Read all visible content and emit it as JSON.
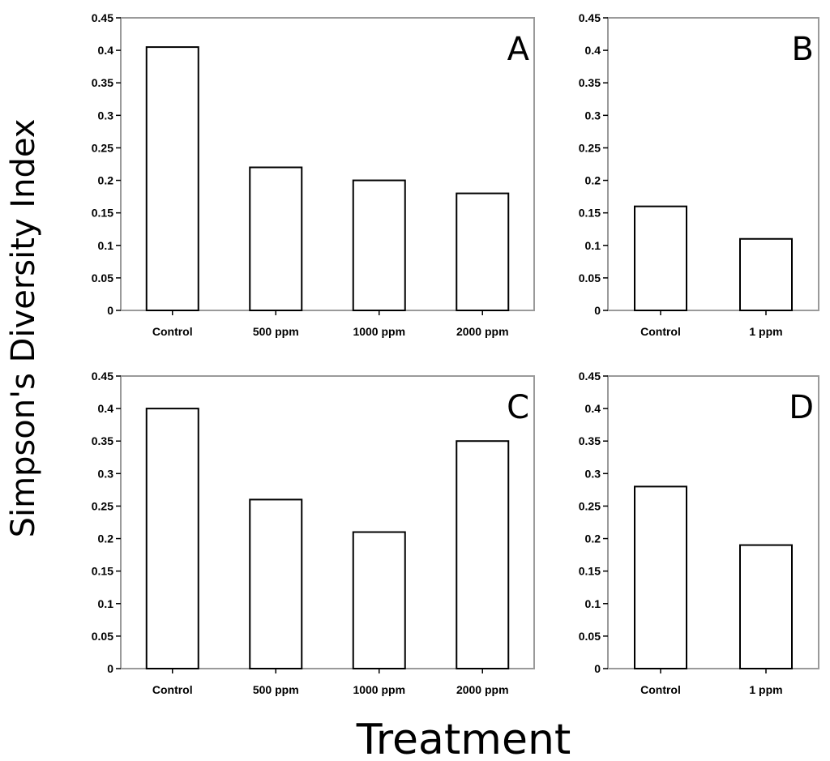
{
  "figure": {
    "ylabel": "Simpson's Diversity Index",
    "xlabel": "Treatment"
  },
  "chart_data": [
    {
      "panel": "A",
      "type": "bar",
      "categories": [
        "Control",
        "500 ppm",
        "1000 ppm",
        "2000 ppm"
      ],
      "values": [
        0.405,
        0.22,
        0.2,
        0.18
      ],
      "ylim": [
        0,
        0.45
      ],
      "yticks": [
        "0",
        "0.05",
        "0.1",
        "0.15",
        "0.2",
        "0.25",
        "0.3",
        "0.35",
        "0.4",
        "0.45"
      ]
    },
    {
      "panel": "B",
      "type": "bar",
      "categories": [
        "Control",
        "1 ppm"
      ],
      "values": [
        0.16,
        0.11
      ],
      "ylim": [
        0,
        0.45
      ],
      "yticks": [
        "0",
        "0.05",
        "0.1",
        "0.15",
        "0.2",
        "0.25",
        "0.3",
        "0.35",
        "0.4",
        "0.45"
      ]
    },
    {
      "panel": "C",
      "type": "bar",
      "categories": [
        "Control",
        "500 ppm",
        "1000 ppm",
        "2000 ppm"
      ],
      "values": [
        0.4,
        0.26,
        0.21,
        0.35
      ],
      "ylim": [
        0,
        0.45
      ],
      "yticks": [
        "0",
        "0.05",
        "0.1",
        "0.15",
        "0.2",
        "0.25",
        "0.3",
        "0.35",
        "0.4",
        "0.45"
      ]
    },
    {
      "panel": "D",
      "type": "bar",
      "categories": [
        "Control",
        "1 ppm"
      ],
      "values": [
        0.28,
        0.19
      ],
      "ylim": [
        0,
        0.45
      ],
      "yticks": [
        "0",
        "0.05",
        "0.1",
        "0.15",
        "0.2",
        "0.25",
        "0.3",
        "0.35",
        "0.4",
        "0.45"
      ]
    }
  ]
}
